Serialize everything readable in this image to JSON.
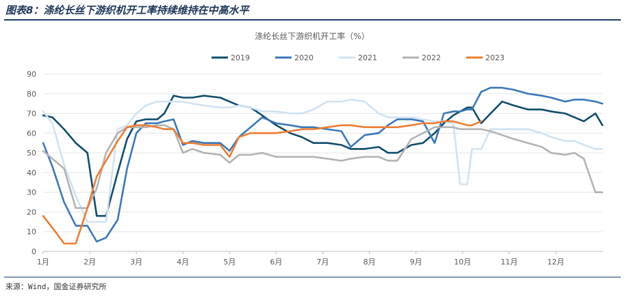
{
  "figure_title": "图表8：涤纶长丝下游织机开工率持续维持在中高水平",
  "source": "来源：Wind，国金证券研究所",
  "chart_data": {
    "type": "line",
    "title": "涤纶长丝下游织机开工率（%）",
    "xlabel": "",
    "ylabel": "",
    "ylim": [
      0,
      90
    ],
    "yticks": [
      0,
      10,
      20,
      30,
      40,
      50,
      60,
      70,
      80,
      90
    ],
    "xlim": [
      1,
      13
    ],
    "month_labels": [
      "1月",
      "2月",
      "3月",
      "4月",
      "5月",
      "6月",
      "7月",
      "8月",
      "9月",
      "10月",
      "11月",
      "12月"
    ],
    "grid": "horizontal",
    "legend": "top-center",
    "series": [
      {
        "name": "2019",
        "color": "#0f4c6b",
        "x": [
          1.0,
          1.2,
          1.45,
          1.7,
          1.95,
          2.15,
          2.35,
          2.6,
          2.8,
          3.0,
          3.2,
          3.45,
          3.6,
          3.8,
          4.0,
          4.2,
          4.45,
          4.8,
          5.0,
          5.2,
          5.45,
          5.7,
          6.0,
          6.3,
          6.55,
          6.8,
          7.1,
          7.4,
          7.6,
          7.9,
          8.2,
          8.4,
          8.6,
          8.9,
          9.15,
          9.4,
          9.6,
          9.8,
          9.95,
          10.1,
          10.2,
          10.4,
          10.6,
          10.85,
          11.1,
          11.4,
          11.7,
          11.9,
          12.2,
          12.4,
          12.6,
          12.85,
          13.0
        ],
        "y": [
          69,
          68,
          62,
          55,
          50,
          18,
          18,
          40,
          57,
          66,
          67,
          67,
          70,
          79,
          78,
          78,
          79,
          78,
          76,
          74,
          73,
          69,
          64,
          60,
          58,
          55,
          55,
          54,
          52,
          52,
          53,
          50,
          50,
          54,
          55,
          60,
          65,
          69,
          71,
          73,
          73,
          65,
          70,
          76,
          74,
          72,
          72,
          71,
          70,
          68,
          66,
          70,
          64
        ]
      },
      {
        "name": "2020",
        "color": "#3a78b8",
        "x": [
          1.0,
          1.2,
          1.45,
          1.7,
          1.95,
          2.15,
          2.35,
          2.6,
          2.8,
          3.0,
          3.2,
          3.45,
          3.6,
          3.8,
          4.0,
          4.2,
          4.45,
          4.8,
          5.0,
          5.2,
          5.45,
          5.7,
          6.0,
          6.3,
          6.55,
          6.8,
          7.1,
          7.4,
          7.6,
          7.9,
          8.2,
          8.4,
          8.6,
          8.9,
          9.15,
          9.4,
          9.6,
          9.8,
          9.95,
          10.1,
          10.2,
          10.4,
          10.6,
          10.85,
          11.1,
          11.4,
          11.7,
          11.9,
          12.2,
          12.4,
          12.6,
          12.85,
          13.0
        ],
        "y": [
          55,
          43,
          25,
          13,
          13,
          5,
          7,
          16,
          42,
          60,
          65,
          65,
          66,
          67,
          54,
          56,
          55,
          55,
          51,
          58,
          63,
          68,
          65,
          64,
          63,
          63,
          62,
          61,
          53,
          59,
          60,
          64,
          67,
          67,
          66,
          55,
          70,
          71,
          71,
          72,
          72,
          81,
          83,
          83,
          82,
          80,
          79,
          78,
          76,
          77,
          77,
          76,
          75
        ]
      },
      {
        "name": "2021",
        "color": "#d0e3f2",
        "x": [
          1.0,
          1.2,
          1.45,
          1.7,
          1.95,
          2.15,
          2.35,
          2.6,
          2.8,
          3.0,
          3.2,
          3.45,
          3.6,
          3.8,
          4.0,
          4.2,
          4.45,
          4.8,
          5.0,
          5.2,
          5.45,
          5.7,
          6.0,
          6.3,
          6.55,
          6.8,
          7.1,
          7.4,
          7.6,
          7.9,
          8.2,
          8.4,
          8.6,
          8.9,
          9.15,
          9.4,
          9.6,
          9.8,
          9.95,
          10.1,
          10.2,
          10.4,
          10.6,
          10.85,
          11.1,
          11.4,
          11.7,
          11.9,
          12.2,
          12.4,
          12.6,
          12.85,
          13.0
        ],
        "y": [
          71,
          65,
          44,
          28,
          15,
          15,
          15,
          62,
          64,
          70,
          74,
          76,
          76,
          76,
          76,
          75,
          74,
          73,
          73,
          74,
          73,
          71,
          71,
          70,
          70,
          72,
          76,
          76,
          77,
          76,
          70,
          68,
          68,
          68,
          67,
          66,
          66,
          65,
          34,
          34,
          52,
          52,
          62,
          62,
          62,
          62,
          60,
          58,
          56,
          56,
          54,
          52,
          52
        ]
      },
      {
        "name": "2022",
        "color": "#b3b3b3",
        "x": [
          1.0,
          1.2,
          1.45,
          1.7,
          1.95,
          2.15,
          2.35,
          2.6,
          2.8,
          3.0,
          3.2,
          3.45,
          3.6,
          3.8,
          4.0,
          4.2,
          4.45,
          4.8,
          5.0,
          5.2,
          5.45,
          5.7,
          6.0,
          6.3,
          6.55,
          6.8,
          7.1,
          7.4,
          7.6,
          7.9,
          8.2,
          8.4,
          8.6,
          8.9,
          9.15,
          9.4,
          9.6,
          9.8,
          9.95,
          10.1,
          10.2,
          10.4,
          10.6,
          10.85,
          11.1,
          11.4,
          11.7,
          11.9,
          12.2,
          12.4,
          12.6,
          12.85,
          13.0
        ],
        "y": [
          51,
          47,
          42,
          22,
          22,
          32,
          50,
          60,
          63,
          63,
          63,
          64,
          64,
          62,
          50,
          52,
          50,
          49,
          45,
          49,
          49,
          50,
          48,
          48,
          48,
          48,
          47,
          46,
          47,
          48,
          48,
          46,
          46,
          57,
          60,
          63,
          63,
          63,
          62,
          62,
          62,
          62,
          61,
          59,
          57,
          55,
          53,
          50,
          49,
          50,
          47,
          30,
          30
        ]
      },
      {
        "name": "2023",
        "color": "#ed7d31",
        "x": [
          1.0,
          1.2,
          1.45,
          1.7,
          1.95,
          2.15,
          2.35,
          2.6,
          2.8,
          3.0,
          3.2,
          3.45,
          3.6,
          3.8,
          4.0,
          4.2,
          4.45,
          4.8,
          5.0,
          5.2,
          5.45,
          5.7,
          6.0,
          6.3,
          6.55,
          6.8,
          7.1,
          7.4,
          7.6,
          7.9,
          8.2,
          8.4,
          8.6,
          8.9,
          9.15,
          9.4,
          9.6,
          9.8,
          9.95,
          10.1,
          10.2,
          10.4
        ],
        "y": [
          18,
          12,
          4,
          4,
          22,
          38,
          46,
          56,
          63,
          64,
          64,
          63,
          62,
          62,
          55,
          55,
          54,
          54,
          48,
          58,
          60,
          60,
          60,
          61,
          62,
          62,
          63,
          64,
          64,
          63,
          63,
          63,
          63,
          64,
          65,
          65,
          66,
          66,
          65,
          64,
          64,
          66
        ]
      }
    ]
  }
}
